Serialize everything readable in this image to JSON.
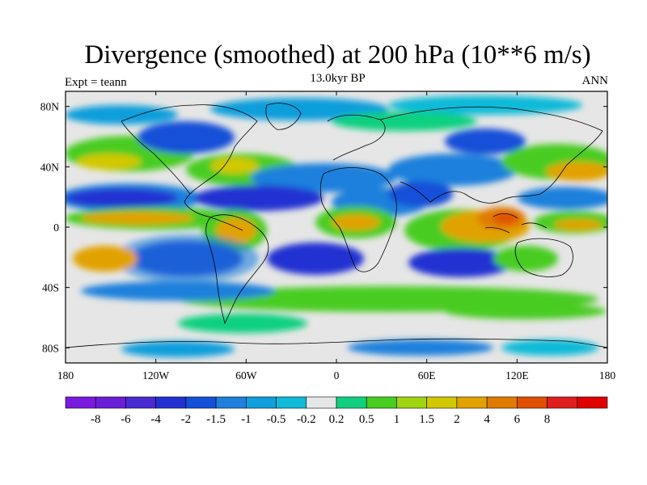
{
  "title": "Divergence (smoothed) at 200 hPa (10**6 m/s)",
  "subtitle": "13.0kyr BP",
  "left_label": "Expt = teann",
  "right_label": "ANN",
  "map": {
    "projection": "cylindrical-equidistant",
    "lon_range": [
      -180,
      180
    ],
    "lat_range": [
      -90,
      90
    ],
    "x_ticks": [
      {
        "lon": -180,
        "label": "180"
      },
      {
        "lon": -120,
        "label": "120W"
      },
      {
        "lon": -60,
        "label": "60W"
      },
      {
        "lon": 0,
        "label": "0"
      },
      {
        "lon": 60,
        "label": "60E"
      },
      {
        "lon": 120,
        "label": "120E"
      },
      {
        "lon": 180,
        "label": "180"
      }
    ],
    "y_ticks": [
      {
        "lat": 80,
        "label": "80N"
      },
      {
        "lat": 40,
        "label": "40N"
      },
      {
        "lat": 0,
        "label": "0"
      },
      {
        "lat": -40,
        "label": "40S"
      },
      {
        "lat": -80,
        "label": "80S"
      }
    ],
    "coastline_color": "#000000",
    "background_color": "#e6e6e6"
  },
  "colorbar": {
    "colors": [
      "#7a1ae0",
      "#6a1ed8",
      "#4a2ad2",
      "#2230d2",
      "#1450d8",
      "#1e80dc",
      "#109edc",
      "#10bad8",
      "#e6e6e6",
      "#10d080",
      "#48cc20",
      "#a0d410",
      "#d2c800",
      "#e1a200",
      "#e07a00",
      "#e05000",
      "#e01e1e",
      "#e00000"
    ],
    "labels": [
      "-8",
      "-6",
      "-4",
      "-2",
      "-1.5",
      "-1",
      "-0.5",
      "-0.2",
      "0.2",
      "0.5",
      "1",
      "1.5",
      "2",
      "4",
      "6",
      "8"
    ]
  },
  "palette": {
    "purple": "#7a1ae0",
    "dark_blue": "#1818c8",
    "blue": "#1e80dc",
    "light_blue": "#10bad8",
    "neutral": "#e6e6e6",
    "teal_green": "#10d080",
    "green": "#48cc20",
    "yellow_green": "#a0d410",
    "yellow": "#d2c800",
    "orange": "#e1a200",
    "dark_orange": "#e07a00",
    "red_orange": "#e05000"
  }
}
